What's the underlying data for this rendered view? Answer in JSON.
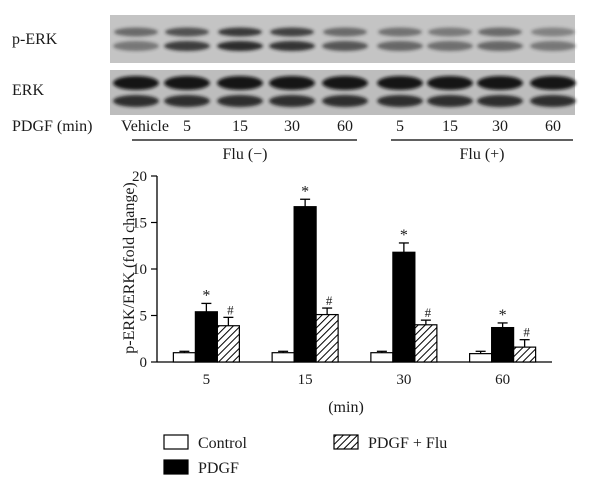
{
  "blot": {
    "rows": [
      {
        "label": "p-ERK"
      },
      {
        "label": "ERK"
      }
    ],
    "treatment_label": "PDGF (min)",
    "lanes": [
      "Vehicle",
      "5",
      "15",
      "30",
      "60",
      "5",
      "15",
      "30",
      "60"
    ],
    "groups": [
      {
        "label": "Flu (−)"
      },
      {
        "label": "Flu (+)"
      }
    ]
  },
  "chart_data": {
    "type": "bar",
    "categories": [
      "5",
      "15",
      "30",
      "60"
    ],
    "series": [
      {
        "name": "Control",
        "color": "#ffffff",
        "pattern": "none",
        "values": [
          1.0,
          1.0,
          1.0,
          0.9
        ],
        "errors": [
          0.15,
          0.15,
          0.15,
          0.25
        ]
      },
      {
        "name": "PDGF",
        "color": "#000000",
        "pattern": "none",
        "values": [
          5.4,
          16.7,
          11.8,
          3.7
        ],
        "errors": [
          0.9,
          0.8,
          1.0,
          0.5
        ]
      },
      {
        "name": "PDGF + Flu",
        "color": "#ffffff",
        "pattern": "hatch",
        "values": [
          3.9,
          5.1,
          4.0,
          1.6
        ],
        "errors": [
          0.9,
          0.7,
          0.5,
          0.8
        ]
      }
    ],
    "annotations": {
      "PDGF": "*",
      "PDGF + Flu": "#"
    },
    "xlabel": "(min)",
    "ylabel": "p-ERK/ERK (fold change)",
    "ylim": [
      0,
      20
    ],
    "yticks": [
      0,
      5,
      10,
      15,
      20
    ],
    "legend": "bottom",
    "grid": false
  }
}
